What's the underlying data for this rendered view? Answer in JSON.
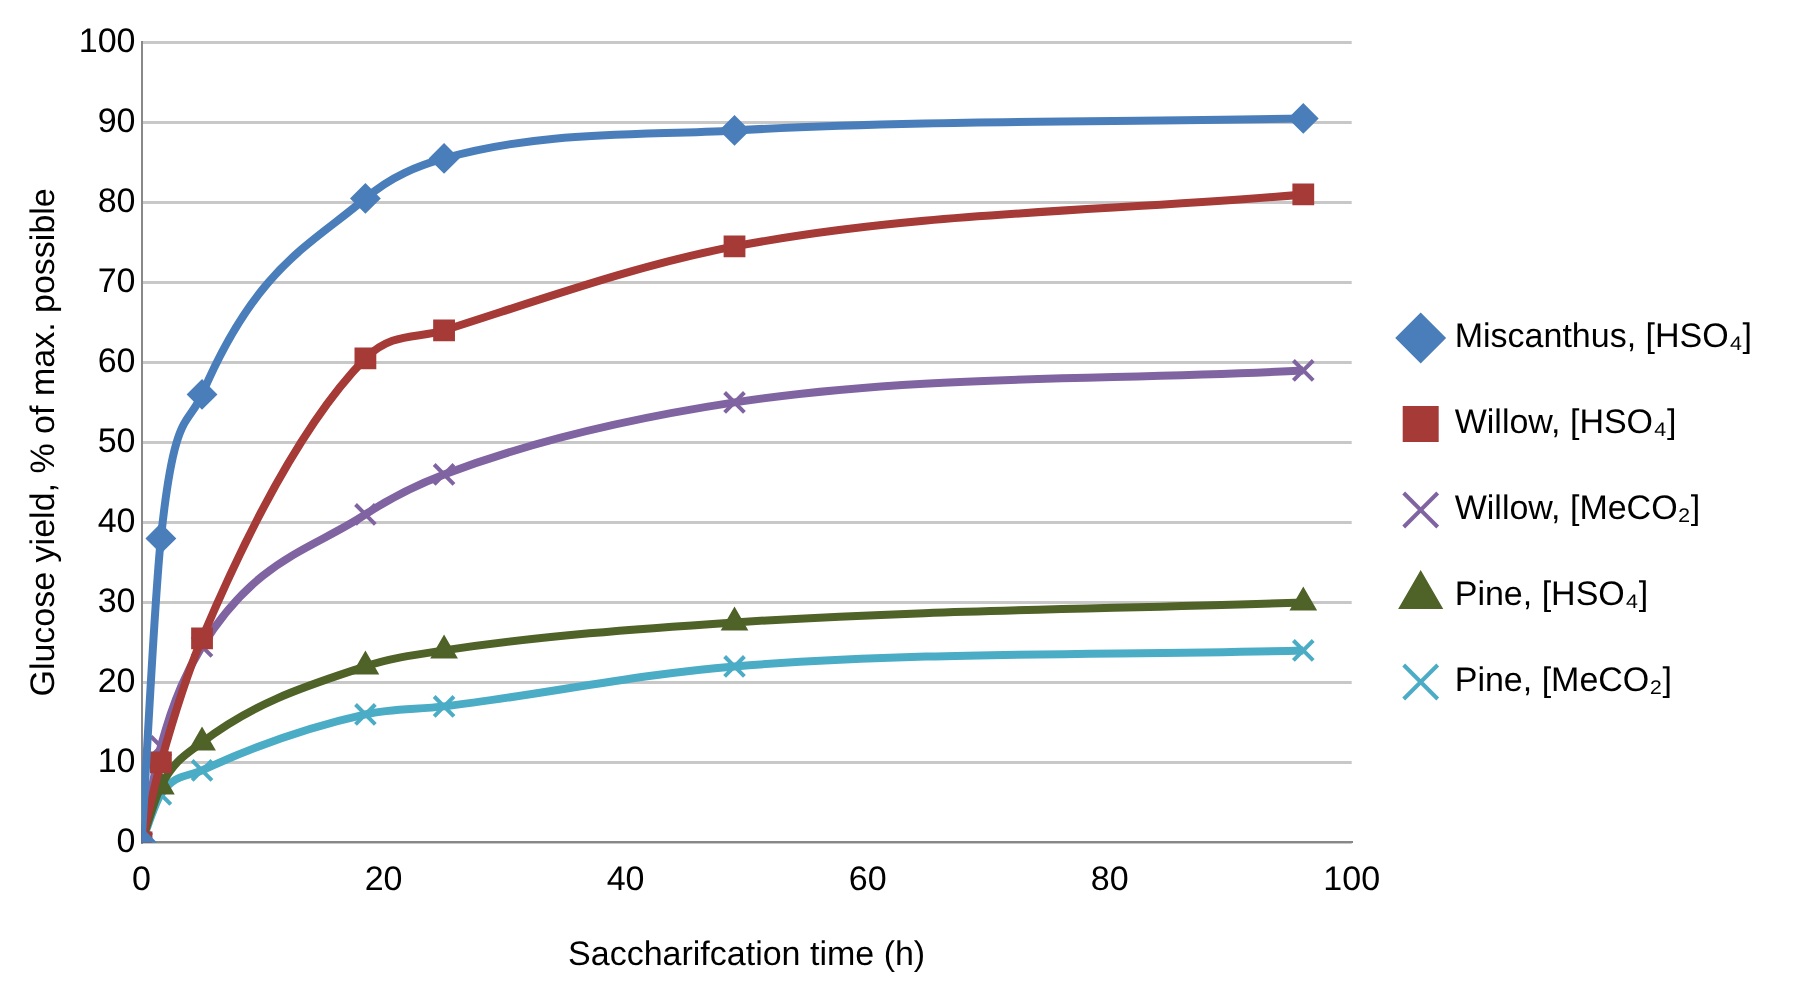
{
  "chart_data": {
    "type": "line",
    "xlabel": "Saccharifcation time (h)",
    "ylabel": "Glucose yield, % of max. possible",
    "xlim": [
      0,
      100
    ],
    "xticks": [
      0,
      20,
      40,
      60,
      80,
      100
    ],
    "ylim": [
      0,
      100
    ],
    "yticks": [
      0,
      10,
      20,
      30,
      40,
      50,
      60,
      70,
      80,
      90,
      100
    ],
    "grid": "y",
    "legend": "right",
    "line_style": "solid",
    "series": [
      {
        "name": "Miscanthus, [HSO₄]",
        "color": "#4a7ebb",
        "marker": "diamond",
        "x": [
          0,
          1.6,
          5,
          18.5,
          25,
          49,
          96
        ],
        "values": [
          0,
          38,
          56,
          80.5,
          85.5,
          89,
          90.5
        ]
      },
      {
        "name": "Willow, [HSO₄]",
        "color": "#a53a36",
        "marker": "square",
        "x": [
          0,
          1.6,
          5,
          18.5,
          25,
          49,
          96
        ],
        "values": [
          0,
          10,
          25.5,
          60.5,
          64,
          74.5,
          81
        ]
      },
      {
        "name": "Willow, [MeCO₂]",
        "color": "#8064a2",
        "marker": "cross",
        "x": [
          0,
          1.6,
          5,
          18.5,
          25,
          49,
          96
        ],
        "values": [
          0,
          12,
          24.5,
          41,
          46,
          55,
          59
        ]
      },
      {
        "name": "Pine, [HSO₄]",
        "color": "#4f6228",
        "marker": "triangle",
        "x": [
          0,
          1.6,
          5,
          18.5,
          25,
          49,
          96
        ],
        "values": [
          0,
          7,
          12.5,
          22,
          24,
          27.5,
          30
        ]
      },
      {
        "name": "Pine, [MeCO₂]",
        "color": "#4bacc6",
        "marker": "cross",
        "x": [
          0,
          1.6,
          5,
          18.5,
          25,
          49,
          96
        ],
        "values": [
          0,
          6,
          9,
          16,
          17,
          22,
          24
        ]
      }
    ]
  }
}
